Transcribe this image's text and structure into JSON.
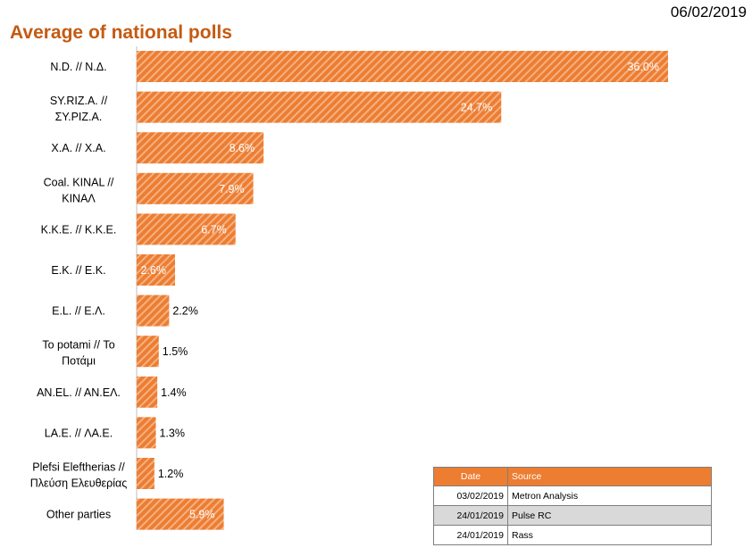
{
  "header": {
    "date": "06/02/2019"
  },
  "chart_data": {
    "type": "bar",
    "orientation": "horizontal",
    "title": "Average of national polls",
    "categories": [
      [
        "N.D. // Ν.Δ."
      ],
      [
        "SY.RIZ.A. //",
        "ΣΥ.ΡΙΖ.Α."
      ],
      [
        "X.A. // X.A."
      ],
      [
        "Coal. KINAL //",
        "ΚΙΝΑΛ"
      ],
      [
        "K.K.E. // K.K.E."
      ],
      [
        "E.K. // E.K."
      ],
      [
        "E.L. // Ε.Λ."
      ],
      [
        "To potami // Το",
        "Ποτάμι"
      ],
      [
        "AN.EL. // AN.EΛ."
      ],
      [
        "LA.E. // ΛΑ.Ε."
      ],
      [
        "Plefsi Eleftherias //",
        "Πλεύση Ελευθερίας"
      ],
      [
        "Other parties"
      ]
    ],
    "values": [
      36.0,
      24.7,
      8.6,
      7.9,
      6.7,
      2.6,
      2.2,
      1.5,
      1.4,
      1.3,
      1.2,
      5.9
    ],
    "data_labels": [
      "36.0%",
      "24.7%",
      "8.6%",
      "7.9%",
      "6.7%",
      "2.6%",
      "2.2%",
      "1.5%",
      "1.4%",
      "1.3%",
      "1.2%",
      "5.9%"
    ],
    "bar_color": "#ed7d31",
    "stripe_color": "#f4b183",
    "xlim": [
      0,
      36.0
    ],
    "grid": false
  },
  "sources_table": {
    "headers": [
      "Date",
      "Source"
    ],
    "rows": [
      [
        "03/02/2019",
        "Metron Analysis"
      ],
      [
        "24/01/2019",
        "Pulse RC"
      ],
      [
        "24/01/2019",
        "Rass"
      ]
    ]
  }
}
